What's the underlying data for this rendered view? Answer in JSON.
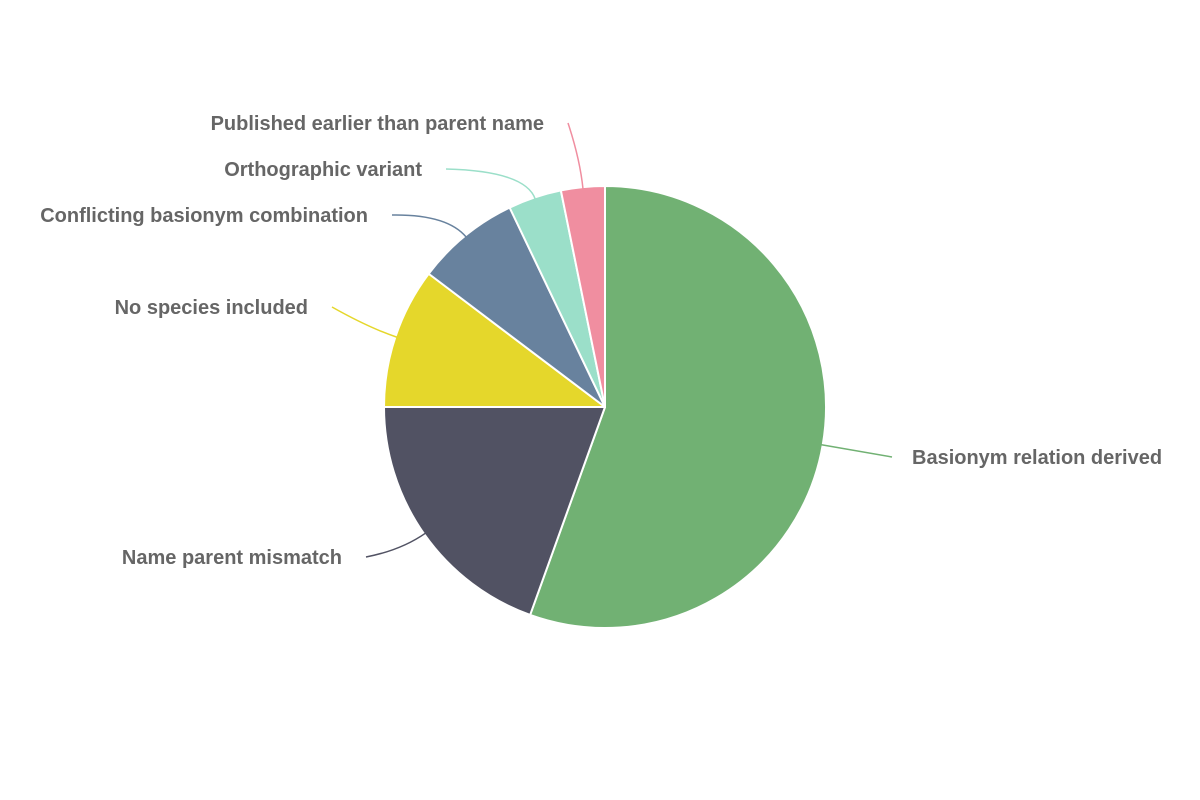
{
  "chart_data": {
    "type": "pie",
    "title": "",
    "slices": [
      {
        "label": "Basionym relation derived",
        "value": 55.5,
        "color": "#71b173"
      },
      {
        "label": "Name parent mismatch",
        "value": 19.5,
        "color": "#515263"
      },
      {
        "label": "No species included",
        "value": 10.3,
        "color": "#e5d72b"
      },
      {
        "label": "Conflicting basionym combination",
        "value": 7.6,
        "color": "#68829e"
      },
      {
        "label": "Orthographic variant",
        "value": 3.9,
        "color": "#9bdfc9"
      },
      {
        "label": "Published earlier than parent name",
        "value": 3.2,
        "color": "#f08ea0"
      }
    ],
    "start_angle": "12 o'clock",
    "direction": "clockwise",
    "legend": "none (labels attached with leader lines)"
  }
}
